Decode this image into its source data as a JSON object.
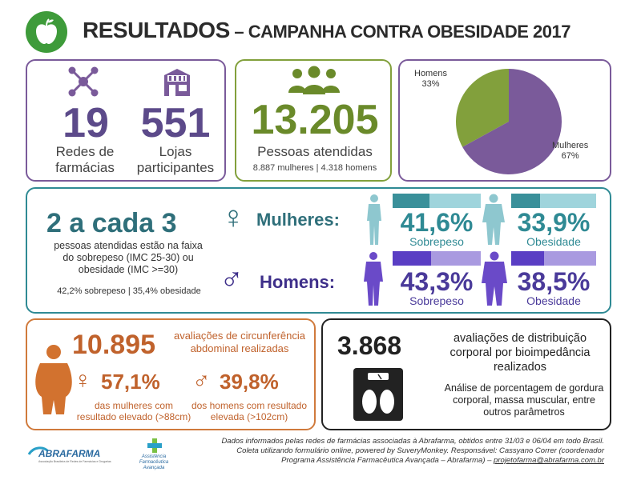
{
  "header": {
    "title_main": "RESULTADOS",
    "title_sub": " – CAMPANHA CONTRA OBESIDADE 2017"
  },
  "stats1": {
    "redes_value": "19",
    "redes_label": "Redes de farmácias",
    "lojas_value": "551",
    "lojas_label": "Lojas participantes"
  },
  "stats2": {
    "pessoas_value": "13.205",
    "pessoas_label": "Pessoas atendidas",
    "breakdown": "8.887 mulheres | 4.318 homens"
  },
  "pie": {
    "homens_label": "Homens",
    "homens_pct": "33%",
    "mulheres_label": "Mulheres",
    "mulheres_pct": "67%"
  },
  "chart_data": {
    "type": "pie",
    "categories": [
      "Homens",
      "Mulheres"
    ],
    "values": [
      33,
      67
    ],
    "colors": [
      "#82a03c",
      "#7a5a9a"
    ]
  },
  "middle": {
    "ratio": "2 a cada 3",
    "description": "pessoas atendidas estão na faixa do sobrepeso (IMC 25-30) ou obesidade (IMC >=30)",
    "summary": "42,2% sobrepeso | 35,4% obesidade",
    "women_label": "Mulheres:",
    "women_overweight": "41,6%",
    "women_obesity": "33,9%",
    "men_label": "Homens:",
    "men_overweight": "43,3%",
    "men_obesity": "38,5%",
    "overweight_label": "Sobrepeso",
    "obesity_label": "Obesidade"
  },
  "abdominal": {
    "count": "10.895",
    "text": "avaliações de circunferência abdominal realizadas",
    "women_pct": "57,1%",
    "women_text": "das mulheres com resultado elevado (>88cm)",
    "men_pct": "39,8%",
    "men_text": "dos homens com resultado elevada (>102cm)"
  },
  "bioimpedance": {
    "count": "3.868",
    "text": "avaliações de distribuição corporal por bioimpedância realizados",
    "detail": "Análise de porcentagem de gordura corporal, massa muscular, entre outros parâmetros"
  },
  "footer": {
    "line1": "Dados informados pelas redes de farmácias associadas à Abrafarma, obtidos entre 31/03 e 06/04 em todo Brasil.",
    "line2": "Coleta utilizando formulário online, powered by SuveryMonkey.  Responsável: Cassyano Correr (coordenador",
    "line3": "Programa Assistência Farmacêutica Avançada – Abrafarma) – ",
    "email": "projetofarma@abrafarma.com.br",
    "logo1": "ABRAFARMA",
    "logo1_sub": "Associação Brasileira de Redes de Farmácias e Drogarias",
    "logo2_line1": "Assistência",
    "logo2_line2": "Farmacêutica",
    "logo2_line3": "Avançada"
  },
  "colors": {
    "purple": "#5c4a8a",
    "green": "#6a8a2a",
    "teal": "#2f8a94",
    "orange": "#c0622c"
  }
}
